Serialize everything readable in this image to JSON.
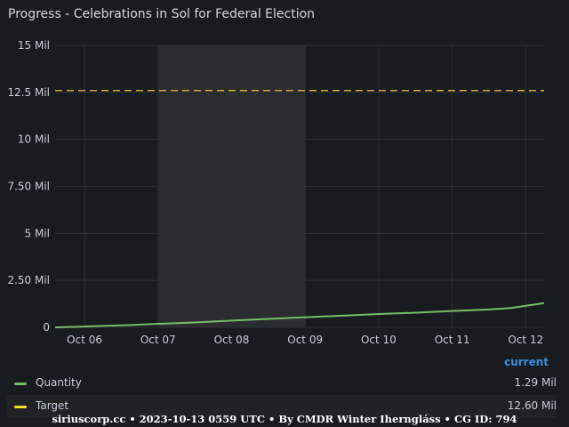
{
  "panel": {
    "title": "Progress - Celebrations in Sol for Federal Election"
  },
  "legend": {
    "header": "current",
    "items": [
      {
        "name": "Quantity",
        "value": "1.29 Mil",
        "color": "#73bf69"
      },
      {
        "name": "Target",
        "value": "12.60 Mil",
        "color": "#fade2a"
      }
    ]
  },
  "footer": {
    "text": "siriuscorp.cc • 2023-10-13 0559 UTC • By CMDR Winter Iherngláss • CG ID: 794"
  },
  "chart_data": {
    "type": "line",
    "x_tick_labels": [
      "Oct 06",
      "Oct 07",
      "Oct 08",
      "Oct 09",
      "Oct 10",
      "Oct 11",
      "Oct 12"
    ],
    "y_tick_labels": [
      "0",
      "2.50 Mil",
      "5 Mil",
      "7.50 Mil",
      "10 Mil",
      "12.5 Mil",
      "15 Mil"
    ],
    "y_ticks": [
      0,
      2.5,
      5,
      7.5,
      10,
      12.5,
      15
    ],
    "ylim": [
      0,
      15
    ],
    "xlim": [
      5.6,
      12.25
    ],
    "x_unit": "October 2023 day",
    "y_unit": "Mil",
    "grid": true,
    "highlight_range": [
      7.0,
      9.0
    ],
    "highlight_color": "#2a2c30",
    "series": [
      {
        "name": "Quantity",
        "color": "#73bf69",
        "style": "solid",
        "x": [
          5.6,
          5.9,
          6.2,
          6.6,
          7.0,
          7.5,
          8.0,
          8.5,
          9.0,
          9.5,
          10.0,
          10.5,
          11.0,
          11.5,
          11.8,
          12.0,
          12.25
        ],
        "y": [
          0.0,
          0.03,
          0.07,
          0.12,
          0.19,
          0.26,
          0.36,
          0.45,
          0.54,
          0.62,
          0.71,
          0.78,
          0.87,
          0.95,
          1.03,
          1.15,
          1.29
        ]
      },
      {
        "name": "Target",
        "color": "#fade2a",
        "style": "dashed",
        "x": [
          5.6,
          12.25
        ],
        "y": [
          12.6,
          12.6
        ]
      }
    ]
  }
}
